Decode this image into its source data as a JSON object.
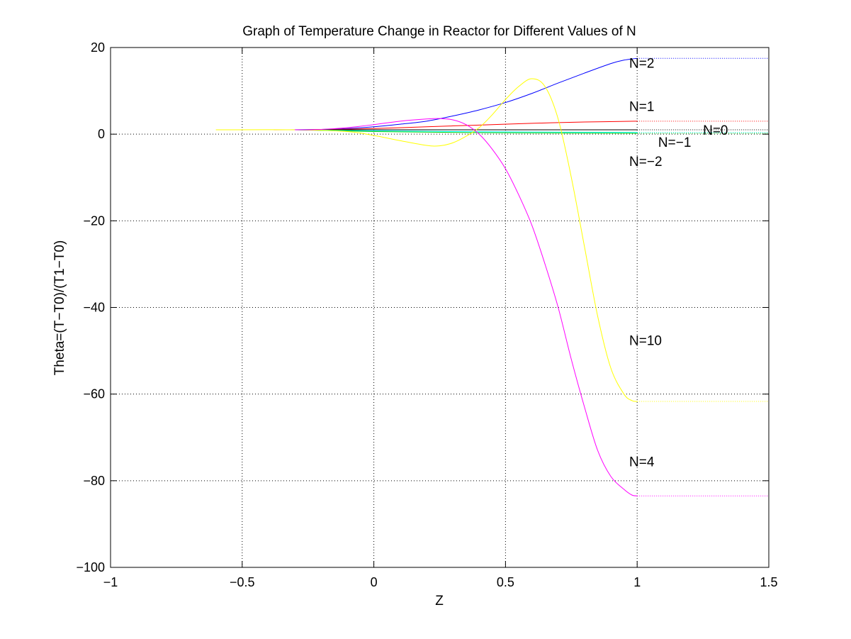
{
  "chart_data": {
    "type": "line",
    "title": "Graph of Temperature Change in Reactor for Different Values of N",
    "xlabel": "Z",
    "ylabel": "Theta=(T−T0)/(T1−T0)",
    "xlim": [
      -1,
      1.5
    ],
    "ylim": [
      -100,
      20
    ],
    "xticks": [
      -1,
      -0.5,
      0,
      0.5,
      1,
      1.5
    ],
    "xtick_labels": [
      "−1",
      "−0.5",
      "0",
      "0.5",
      "1",
      "1.5"
    ],
    "yticks": [
      -100,
      -80,
      -60,
      -40,
      -20,
      0,
      20
    ],
    "ytick_labels": [
      "−100",
      "−80",
      "−60",
      "−40",
      "−20",
      "0",
      "20"
    ],
    "grid": true,
    "series": [
      {
        "name": "N=2",
        "color": "#0000ff",
        "x": [
          -0.32,
          -0.2,
          -0.1,
          0.0,
          0.1,
          0.2,
          0.3,
          0.4,
          0.5,
          0.6,
          0.7,
          0.8,
          0.9,
          0.95,
          1.0
        ],
        "y": [
          1.0,
          1.1,
          1.3,
          1.7,
          2.3,
          3.0,
          4.2,
          5.6,
          7.3,
          9.4,
          11.8,
          14.1,
          16.3,
          17.1,
          17.5
        ],
        "tail": {
          "x": [
            1.0,
            1.5
          ],
          "y": [
            17.5,
            17.5
          ]
        }
      },
      {
        "name": "N=1",
        "color": "#ff0000",
        "x": [
          -0.38,
          -0.2,
          0.0,
          0.2,
          0.4,
          0.6,
          0.8,
          1.0
        ],
        "y": [
          1.0,
          1.05,
          1.3,
          1.7,
          2.1,
          2.5,
          2.8,
          3.0
        ],
        "tail": {
          "x": [
            1.0,
            1.5
          ],
          "y": [
            3.0,
            3.0
          ]
        }
      },
      {
        "name": "N=0",
        "color": "#000000",
        "x": [
          -0.3,
          0.0,
          0.5,
          1.0
        ],
        "y": [
          1.0,
          1.0,
          1.0,
          1.0
        ],
        "tail": {
          "x": [
            1.0,
            1.5
          ],
          "y": [
            1.0,
            1.0
          ]
        }
      },
      {
        "name": "N=−1",
        "color": "#00ffff",
        "x": [
          -0.3,
          0.0,
          0.3,
          0.6,
          1.0
        ],
        "y": [
          1.0,
          0.8,
          0.6,
          0.5,
          0.4
        ],
        "tail": {
          "x": [
            1.0,
            1.5
          ],
          "y": [
            0.4,
            0.4
          ]
        }
      },
      {
        "name": "N=−2",
        "color": "#00cc00",
        "x": [
          -0.3,
          0.0,
          0.3,
          0.6,
          1.0
        ],
        "y": [
          1.0,
          0.6,
          0.4,
          0.3,
          0.2
        ],
        "tail": {
          "x": [
            1.0,
            1.5
          ],
          "y": [
            0.2,
            0.2
          ]
        }
      },
      {
        "name": "N=10",
        "color": "#ffff00",
        "x": [
          -0.6,
          -0.3,
          -0.1,
          0.0,
          0.1,
          0.2,
          0.25,
          0.3,
          0.35,
          0.4,
          0.45,
          0.5,
          0.55,
          0.6,
          0.65,
          0.7,
          0.75,
          0.8,
          0.85,
          0.9,
          0.95,
          0.98,
          1.0
        ],
        "y": [
          1.0,
          1.0,
          0.6,
          -0.3,
          -1.5,
          -2.6,
          -2.7,
          -2.0,
          -0.5,
          1.5,
          4.5,
          8.0,
          11.0,
          12.8,
          11.0,
          3.5,
          -10.0,
          -26.0,
          -42.0,
          -54.0,
          -60.0,
          -61.5,
          -61.7
        ],
        "tail": {
          "x": [
            1.0,
            1.5
          ],
          "y": [
            -61.7,
            -61.7
          ]
        }
      },
      {
        "name": "N=4",
        "color": "#ff00ff",
        "x": [
          -0.3,
          -0.2,
          -0.1,
          0.0,
          0.1,
          0.2,
          0.25,
          0.3,
          0.35,
          0.4,
          0.45,
          0.5,
          0.55,
          0.6,
          0.65,
          0.7,
          0.75,
          0.8,
          0.85,
          0.9,
          0.95,
          0.98,
          1.0
        ],
        "y": [
          1.0,
          1.1,
          1.5,
          2.2,
          3.0,
          3.5,
          3.6,
          3.3,
          2.2,
          0.0,
          -3.5,
          -8.0,
          -14.0,
          -21.0,
          -30.0,
          -40.0,
          -52.0,
          -63.0,
          -73.0,
          -79.0,
          -82.0,
          -83.3,
          -83.5
        ],
        "tail": {
          "x": [
            1.0,
            1.5
          ],
          "y": [
            -83.5,
            -83.5
          ]
        }
      }
    ],
    "annotations": [
      {
        "text": "N=2",
        "x": 0.97,
        "y": 16.5
      },
      {
        "text": "N=1",
        "x": 0.97,
        "y": 6.5
      },
      {
        "text": "N=0",
        "x": 1.25,
        "y": 1.0
      },
      {
        "text": "N=−1",
        "x": 1.08,
        "y": -1.8
      },
      {
        "text": "N=−2",
        "x": 0.97,
        "y": -6.2
      },
      {
        "text": "N=10",
        "x": 0.97,
        "y": -47.5
      },
      {
        "text": "N=4",
        "x": 0.97,
        "y": -75.5
      }
    ]
  }
}
